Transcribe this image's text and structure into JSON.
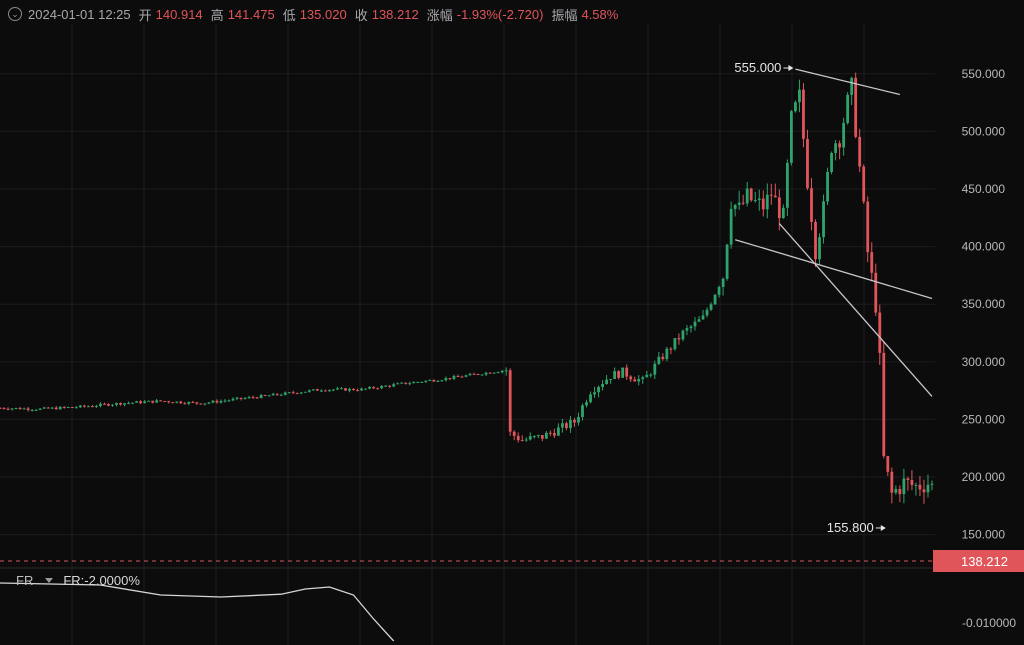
{
  "header": {
    "datetime": "2024-01-01 12:25",
    "open_label": "开",
    "open": "140.914",
    "high_label": "高",
    "high": "141.475",
    "low_label": "低",
    "low": "135.020",
    "close_label": "收",
    "close": "138.212",
    "change_label": "涨幅",
    "change": "-1.93%(-2.720)",
    "amplitude_label": "振幅",
    "amplitude": "4.58%"
  },
  "indicator": {
    "name": "FR",
    "value_text": "FR:-2.0000%"
  },
  "colors": {
    "up": "#2fa36b",
    "down": "#e0555a",
    "grid": "#1d1d20",
    "trendline": "#c8c8cc",
    "price_tag": "#e0555a"
  },
  "chart_data": {
    "type": "candlestick",
    "x_index_range": [
      0,
      232
    ],
    "ylim": [
      128,
      588
    ],
    "y_ticks": [
      "550.000",
      "500.000",
      "450.000",
      "400.000",
      "350.000",
      "300.000",
      "250.000",
      "200.000",
      "150.000"
    ],
    "y_tick_values": [
      550,
      500,
      450,
      400,
      350,
      300,
      250,
      200,
      150
    ],
    "annotations": [
      {
        "label": "555.000",
        "index": 198,
        "value": 555
      },
      {
        "label": "155.800",
        "index": 221,
        "value": 155.8
      }
    ],
    "current_price": {
      "label": "138.212",
      "value": 138.212
    },
    "price_path": [
      [
        0,
        260
      ],
      [
        10,
        259
      ],
      [
        20,
        261
      ],
      [
        30,
        264
      ],
      [
        40,
        266
      ],
      [
        50,
        264
      ],
      [
        60,
        268
      ],
      [
        70,
        272
      ],
      [
        80,
        276
      ],
      [
        90,
        276
      ],
      [
        100,
        281
      ],
      [
        110,
        285
      ],
      [
        120,
        290
      ],
      [
        126,
        293
      ],
      [
        127,
        238
      ],
      [
        130,
        232
      ],
      [
        135,
        235
      ],
      [
        140,
        243
      ],
      [
        143,
        248
      ],
      [
        147,
        275
      ],
      [
        152,
        288
      ],
      [
        155,
        291
      ],
      [
        160,
        283
      ],
      [
        165,
        305
      ],
      [
        170,
        325
      ],
      [
        175,
        338
      ],
      [
        180,
        375
      ],
      [
        182,
        440
      ],
      [
        184,
        432
      ],
      [
        186,
        443
      ],
      [
        188,
        438
      ],
      [
        190,
        435
      ],
      [
        192,
        446
      ],
      [
        195,
        425
      ],
      [
        197,
        510
      ],
      [
        199,
        530
      ],
      [
        201,
        458
      ],
      [
        203,
        398
      ],
      [
        205,
        432
      ],
      [
        207,
        488
      ],
      [
        209,
        495
      ],
      [
        211,
        525
      ],
      [
        212,
        538
      ],
      [
        214,
        468
      ],
      [
        216,
        395
      ],
      [
        218,
        350
      ],
      [
        219,
        300
      ],
      [
        220,
        215
      ],
      [
        222,
        185
      ],
      [
        225,
        195
      ],
      [
        228,
        192
      ],
      [
        231,
        195
      ],
      [
        232,
        192
      ]
    ],
    "trendlines": [
      {
        "from": [
          198,
          554
        ],
        "to": [
          224,
          532
        ]
      },
      {
        "from": [
          183,
          406
        ],
        "to": [
          232,
          355
        ]
      },
      {
        "from": [
          194,
          420
        ],
        "to": [
          232,
          270
        ]
      }
    ],
    "fr_series": {
      "y_ticks": [
        "-0.010000"
      ],
      "y_tick_values": [
        -0.01
      ],
      "ylim": [
        -0.0155,
        0.002
      ],
      "points": [
        [
          0,
          0
        ],
        [
          25,
          -0.0005
        ],
        [
          40,
          -0.003
        ],
        [
          55,
          -0.0035
        ],
        [
          70,
          -0.0028
        ],
        [
          76,
          -0.0015
        ],
        [
          82,
          -0.001
        ],
        [
          88,
          -0.003
        ],
        [
          93,
          -0.009
        ],
        [
          98,
          -0.0145
        ]
      ]
    }
  }
}
